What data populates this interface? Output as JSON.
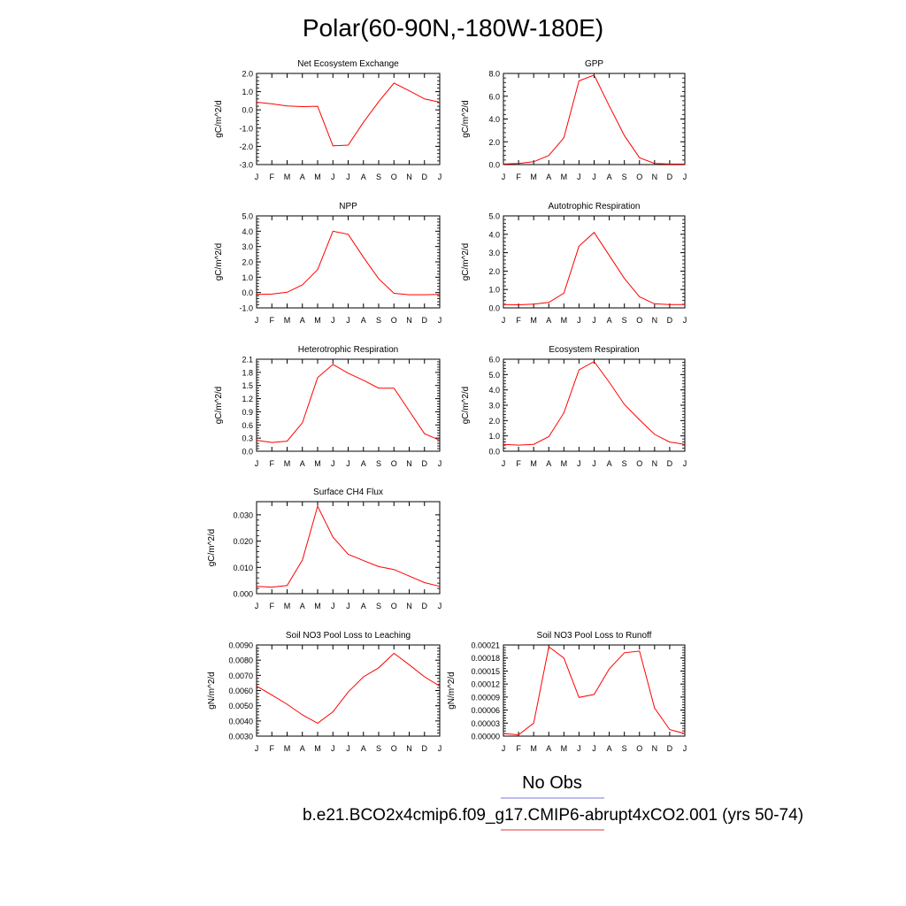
{
  "title": "Polar(60-90N,-180W-180E)",
  "legend": {
    "obs_label": "No Obs",
    "obs_color": "#7777dd",
    "model_label": "b.e21.BCO2x4cmip6.f09_g17.CMIP6-abrupt4xCO2.001 (yrs 50-74)",
    "model_color": "#e23a3a"
  },
  "line_color": "#ff0000",
  "chart_data": [
    {
      "type": "line",
      "title": "Net Ecosystem Exchange",
      "ylabel": "gC/m^2/d",
      "xlabel": "",
      "categories": [
        "J",
        "F",
        "M",
        "A",
        "M",
        "J",
        "J",
        "A",
        "S",
        "O",
        "N",
        "D",
        "J"
      ],
      "values": [
        0.42,
        0.33,
        0.22,
        0.18,
        0.2,
        -1.97,
        -1.93,
        -0.68,
        0.45,
        1.47,
        1.05,
        0.6,
        0.42
      ],
      "ylim": [
        -3.0,
        2.0
      ],
      "yticks": [
        -3.0,
        -2.0,
        -1.0,
        0.0,
        1.0,
        2.0
      ],
      "ytick_labels": [
        "-3.0",
        "-2.0",
        "-1.0",
        "0.0",
        "1.0",
        "2.0"
      ]
    },
    {
      "type": "line",
      "title": "GPP",
      "ylabel": "gC/m^2/d",
      "xlabel": "",
      "categories": [
        "J",
        "F",
        "M",
        "A",
        "M",
        "J",
        "J",
        "A",
        "S",
        "O",
        "N",
        "D",
        "J"
      ],
      "values": [
        0.05,
        0.1,
        0.25,
        0.8,
        2.35,
        7.35,
        7.85,
        5.15,
        2.55,
        0.6,
        0.1,
        0.05,
        0.05
      ],
      "ylim": [
        0.0,
        8.0
      ],
      "yticks": [
        0,
        2,
        4,
        6,
        8
      ],
      "ytick_labels": [
        "0.0",
        "2.0",
        "4.0",
        "6.0",
        "8.0"
      ]
    },
    {
      "type": "line",
      "title": "NPP",
      "ylabel": "gC/m^2/d",
      "xlabel": "",
      "categories": [
        "J",
        "F",
        "M",
        "A",
        "M",
        "J",
        "J",
        "A",
        "S",
        "O",
        "N",
        "D",
        "J"
      ],
      "values": [
        -0.12,
        -0.1,
        0.02,
        0.5,
        1.5,
        4.0,
        3.8,
        2.3,
        0.9,
        -0.05,
        -0.14,
        -0.14,
        -0.12
      ],
      "ylim": [
        -1.0,
        5.0
      ],
      "yticks": [
        -1,
        0,
        1,
        2,
        3,
        4,
        5
      ],
      "ytick_labels": [
        "-1.0",
        "0.0",
        "1.0",
        "2.0",
        "3.0",
        "4.0",
        "5.0"
      ]
    },
    {
      "type": "line",
      "title": "Autotrophic Respiration",
      "ylabel": "gC/m^2/d",
      "xlabel": "",
      "categories": [
        "J",
        "F",
        "M",
        "A",
        "M",
        "J",
        "J",
        "A",
        "S",
        "O",
        "N",
        "D",
        "J"
      ],
      "values": [
        0.18,
        0.17,
        0.2,
        0.3,
        0.8,
        3.35,
        4.1,
        2.85,
        1.6,
        0.6,
        0.22,
        0.18,
        0.18
      ],
      "ylim": [
        0.0,
        5.0
      ],
      "yticks": [
        0,
        1,
        2,
        3,
        4,
        5
      ],
      "ytick_labels": [
        "0.0",
        "1.0",
        "2.0",
        "3.0",
        "4.0",
        "5.0"
      ]
    },
    {
      "type": "line",
      "title": "Heterotrophic Respiration",
      "ylabel": "gC/m^2/d",
      "xlabel": "",
      "categories": [
        "J",
        "F",
        "M",
        "A",
        "M",
        "J",
        "J",
        "A",
        "S",
        "O",
        "N",
        "D",
        "J"
      ],
      "values": [
        0.25,
        0.2,
        0.23,
        0.65,
        1.68,
        1.98,
        1.78,
        1.62,
        1.44,
        1.44,
        0.92,
        0.4,
        0.25
      ],
      "ylim": [
        0.0,
        2.1
      ],
      "yticks": [
        0.0,
        0.3,
        0.6,
        0.9,
        1.2,
        1.5,
        1.8,
        2.1
      ],
      "ytick_labels": [
        "0.0",
        "0.3",
        "0.6",
        "0.9",
        "1.2",
        "1.5",
        "1.8",
        "2.1"
      ]
    },
    {
      "type": "line",
      "title": "Ecosystem Respiration",
      "ylabel": "gC/m^2/d",
      "xlabel": "",
      "categories": [
        "J",
        "F",
        "M",
        "A",
        "M",
        "J",
        "J",
        "A",
        "S",
        "O",
        "N",
        "D",
        "J"
      ],
      "values": [
        0.45,
        0.4,
        0.45,
        0.95,
        2.5,
        5.3,
        5.85,
        4.5,
        3.05,
        2.05,
        1.1,
        0.6,
        0.45
      ],
      "ylim": [
        0.0,
        6.0
      ],
      "yticks": [
        0,
        1,
        2,
        3,
        4,
        5,
        6
      ],
      "ytick_labels": [
        "0.0",
        "1.0",
        "2.0",
        "3.0",
        "4.0",
        "5.0",
        "6.0"
      ]
    },
    {
      "type": "line",
      "title": "Surface CH4 Flux",
      "ylabel": "gC/m^2/d",
      "xlabel": "",
      "categories": [
        "J",
        "F",
        "M",
        "A",
        "M",
        "J",
        "J",
        "A",
        "S",
        "O",
        "N",
        "D",
        "J"
      ],
      "values": [
        0.0028,
        0.0025,
        0.0031,
        0.0128,
        0.0333,
        0.0215,
        0.015,
        0.0126,
        0.0103,
        0.0092,
        0.0067,
        0.0042,
        0.0028
      ],
      "ylim": [
        0.0,
        0.035
      ],
      "yticks": [
        0.0,
        0.01,
        0.02,
        0.03
      ],
      "ytick_labels": [
        "0.000",
        "0.010",
        "0.020",
        "0.030"
      ]
    },
    {
      "type": "line",
      "title": "Soil NO3 Pool Loss to Leaching",
      "ylabel": "gN/m^2/d",
      "xlabel": "",
      "categories": [
        "J",
        "F",
        "M",
        "A",
        "M",
        "J",
        "J",
        "A",
        "S",
        "O",
        "N",
        "D",
        "J"
      ],
      "values": [
        0.0063,
        0.0057,
        0.0051,
        0.0044,
        0.00385,
        0.0046,
        0.0059,
        0.0069,
        0.0075,
        0.00845,
        0.0077,
        0.0069,
        0.0063
      ],
      "ylim": [
        0.003,
        0.009
      ],
      "yticks": [
        0.003,
        0.004,
        0.005,
        0.006,
        0.007,
        0.008,
        0.009
      ],
      "ytick_labels": [
        "0.0030",
        "0.0040",
        "0.0050",
        "0.0060",
        "0.0070",
        "0.0080",
        "0.0090"
      ]
    },
    {
      "type": "line",
      "title": "Soil NO3 Pool Loss to Runoff",
      "ylabel": "gN/m^2/d",
      "xlabel": "",
      "categories": [
        "J",
        "F",
        "M",
        "A",
        "M",
        "J",
        "J",
        "A",
        "S",
        "O",
        "N",
        "D",
        "J"
      ],
      "values": [
        6e-06,
        3e-06,
        3e-05,
        0.000206,
        0.00018,
        8.9e-05,
        9.6e-05,
        0.000155,
        0.000192,
        0.000196,
        6.5e-05,
        1.5e-05,
        6e-06
      ],
      "ylim": [
        0.0,
        0.00021
      ],
      "yticks": [
        0,
        3e-05,
        6e-05,
        9e-05,
        0.00012,
        0.00015,
        0.00018,
        0.00021
      ],
      "ytick_labels": [
        "0.00000",
        "0.00003",
        "0.00006",
        "0.00009",
        "0.00012",
        "0.00015",
        "0.00018",
        "0.00021"
      ]
    }
  ]
}
